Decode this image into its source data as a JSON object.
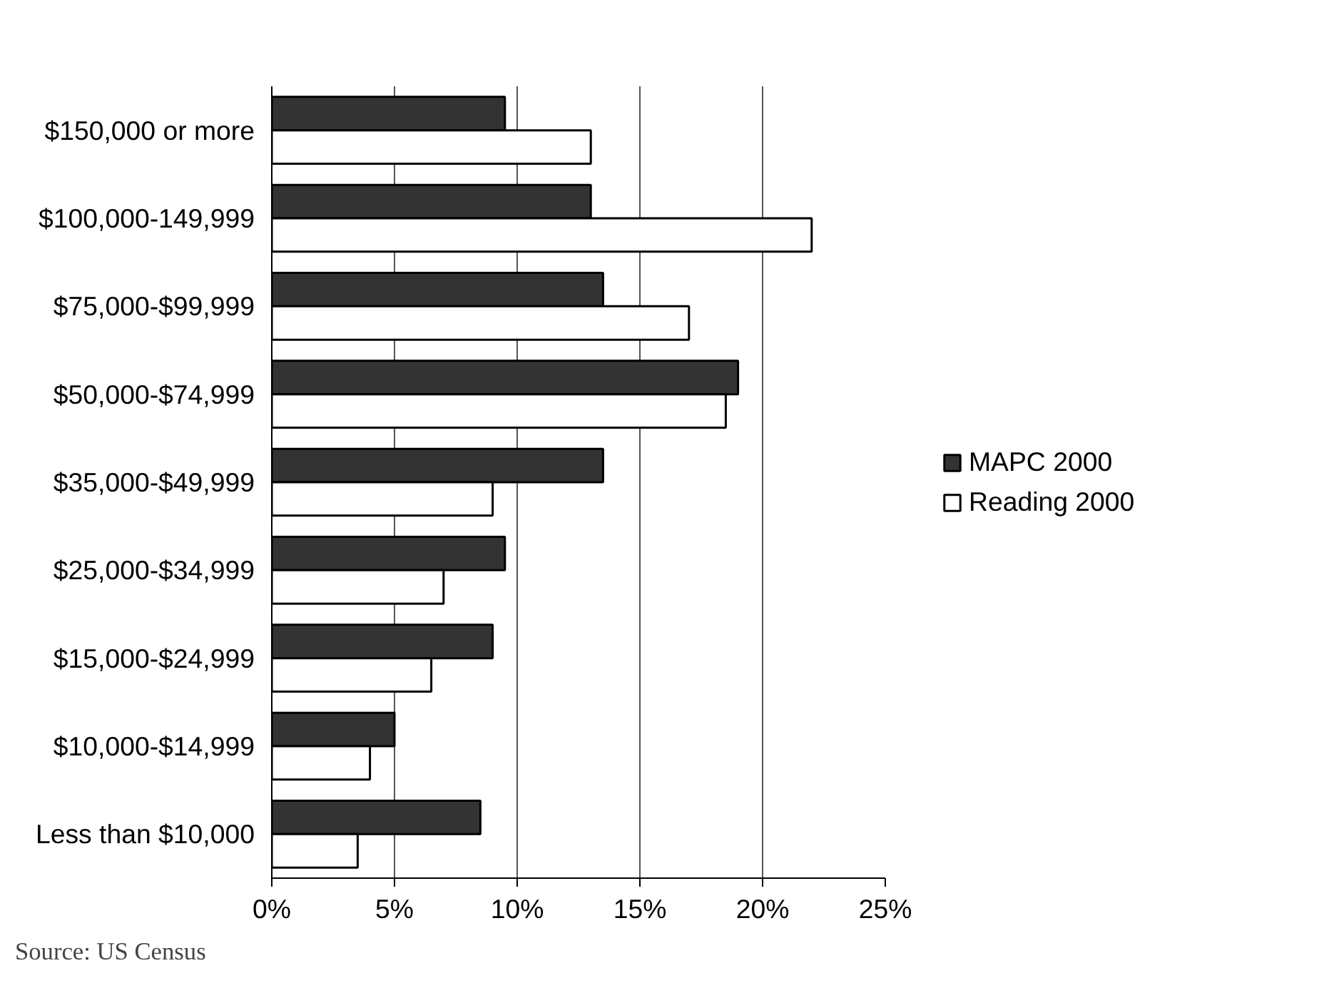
{
  "chart_data": {
    "type": "bar",
    "orientation": "horizontal",
    "categories": [
      "$150,000 or more",
      "$100,000-149,999",
      "$75,000-$99,999",
      "$50,000-$74,999",
      "$35,000-$49,999",
      "$25,000-$34,999",
      "$15,000-$24,999",
      "$10,000-$14,999",
      "Less than $10,000"
    ],
    "series": [
      {
        "name": "MAPC 2000",
        "color": "#333333",
        "values": [
          9.5,
          13,
          13.5,
          19,
          13.5,
          9.5,
          9,
          5,
          8.5
        ]
      },
      {
        "name": "Reading 2000",
        "color": "#ffffff",
        "values": [
          13,
          22,
          17,
          18.5,
          9,
          7,
          6.5,
          4,
          3.5
        ]
      }
    ],
    "xlim": [
      0,
      25
    ],
    "xticks": [
      {
        "value": 0,
        "label": "0%"
      },
      {
        "value": 5,
        "label": "5%"
      },
      {
        "value": 10,
        "label": "10%"
      },
      {
        "value": 15,
        "label": "15%"
      },
      {
        "value": 20,
        "label": "20%"
      },
      {
        "value": 25,
        "label": "25%"
      }
    ],
    "grid": "x",
    "legend": "right",
    "annotations": [
      "Source: US Census"
    ]
  }
}
